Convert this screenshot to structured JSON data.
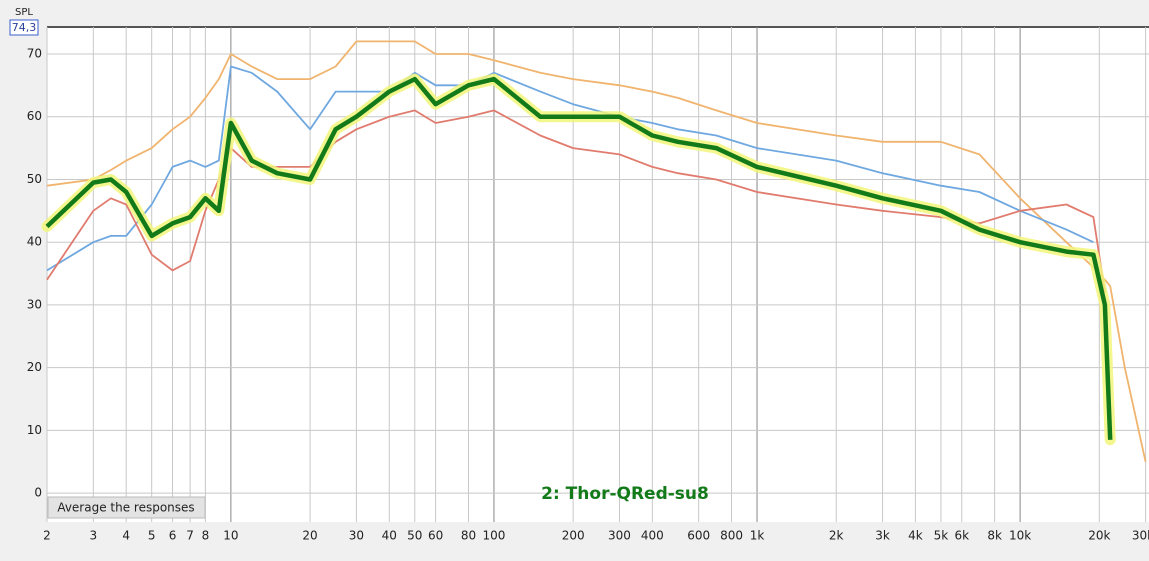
{
  "chart_data": {
    "type": "line",
    "y_label": "SPL",
    "y_max_label": "74,3",
    "button": "Average the responses",
    "log_x": true,
    "grid": true,
    "xlim": [
      2,
      30900
    ],
    "ylim": [
      -4.6,
      74.3
    ],
    "xticks": [
      2,
      3,
      4,
      5,
      6,
      7,
      8,
      10,
      20,
      30,
      40,
      50,
      60,
      80,
      100,
      200,
      300,
      400,
      600,
      800,
      {
        "value": 1000,
        "label": "1k"
      },
      {
        "value": 2000,
        "label": "2k"
      },
      {
        "value": 3000,
        "label": "3k"
      },
      {
        "value": 4000,
        "label": "4k"
      },
      {
        "value": 5000,
        "label": "5k"
      },
      {
        "value": 6000,
        "label": "6k"
      },
      {
        "value": 8000,
        "label": "8k"
      },
      {
        "value": 10000,
        "label": "10k"
      },
      {
        "value": 20000,
        "label": "20k"
      },
      {
        "value": 30000,
        "label": "30k"
      }
    ],
    "yticks": [
      0,
      10,
      20,
      30,
      40,
      50,
      60,
      70
    ],
    "x": [
      2,
      3,
      3.5,
      4,
      5,
      6,
      7,
      8,
      9,
      10,
      12,
      15,
      20,
      25,
      30,
      40,
      50,
      60,
      80,
      100,
      150,
      200,
      300,
      400,
      500,
      700,
      1000,
      2000,
      3000,
      5000,
      7000,
      10000,
      15000,
      19000,
      21000,
      22000,
      25000,
      30000
    ],
    "series": [
      {
        "color": "#f0b46e",
        "values": [
          49,
          50,
          51.5,
          53,
          55,
          58,
          60,
          63,
          66,
          70,
          68,
          66,
          66,
          68,
          72,
          72,
          72,
          70,
          70,
          69,
          67,
          66,
          65,
          64,
          63,
          61,
          59,
          57,
          56,
          56,
          54,
          47,
          40,
          36,
          34,
          33,
          20,
          5
        ]
      },
      {
        "color": "#6fa8e0",
        "values": [
          35.5,
          40,
          41,
          41,
          46,
          52,
          53,
          52,
          53,
          68,
          67,
          64,
          58,
          64,
          64,
          64,
          67,
          65,
          65,
          67,
          64,
          62,
          60,
          59,
          58,
          57,
          55,
          53,
          51,
          49,
          48,
          45,
          42,
          40,
          null,
          null,
          null,
          null
        ]
      },
      {
        "color": "#e07b6e",
        "values": [
          34,
          45,
          47,
          46,
          38,
          35.5,
          37,
          45,
          50,
          55,
          52,
          52,
          52,
          56,
          58,
          60,
          61,
          59,
          60,
          61,
          57,
          55,
          54,
          52,
          51,
          50,
          48,
          46,
          45,
          44,
          43,
          45,
          46,
          44,
          32,
          null,
          null,
          null
        ]
      },
      {
        "name": "2: Thor-QRed-su8",
        "color": "#137a1a",
        "highlight": "#f2f57a",
        "values": [
          42.5,
          49.5,
          50,
          48,
          41,
          43,
          44,
          47,
          45,
          59,
          53,
          51,
          50,
          58,
          60,
          64,
          66,
          62,
          65,
          66,
          60,
          60,
          60,
          57,
          56,
          55,
          52,
          49,
          47,
          45,
          42,
          40,
          38.5,
          38,
          30,
          8.5,
          null,
          null
        ]
      }
    ]
  }
}
